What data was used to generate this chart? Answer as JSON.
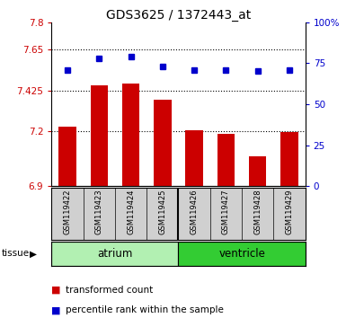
{
  "title": "GDS3625 / 1372443_at",
  "samples": [
    "GSM119422",
    "GSM119423",
    "GSM119424",
    "GSM119425",
    "GSM119426",
    "GSM119427",
    "GSM119428",
    "GSM119429"
  ],
  "transformed_count": [
    7.225,
    7.455,
    7.465,
    7.375,
    7.205,
    7.185,
    7.065,
    7.195
  ],
  "percentile_rank": [
    71,
    78,
    79,
    73,
    71,
    71,
    70,
    71
  ],
  "ylim_left": [
    6.9,
    7.8
  ],
  "ylim_right": [
    0,
    100
  ],
  "yticks_left": [
    6.9,
    7.2,
    7.425,
    7.65,
    7.8
  ],
  "ytick_labels_left": [
    "6.9",
    "7.2",
    "7.425",
    "7.65",
    "7.8"
  ],
  "yticks_right": [
    0,
    25,
    50,
    75,
    100
  ],
  "ytick_labels_right": [
    "0",
    "25",
    "50",
    "75",
    "100%"
  ],
  "bar_color": "#cc0000",
  "dot_color": "#0000cc",
  "bar_bottom": 6.9,
  "tissue_label": "tissue",
  "legend_bar_label": "transformed count",
  "legend_dot_label": "percentile rank within the sample",
  "background_color": "#ffffff",
  "tick_label_color_left": "#cc0000",
  "tick_label_color_right": "#0000cc",
  "atrium_color": "#b2f0b2",
  "ventricle_color": "#33cc33",
  "label_bg_color": "#d0d0d0",
  "gridline_ticks": [
    7.2,
    7.425,
    7.65
  ]
}
